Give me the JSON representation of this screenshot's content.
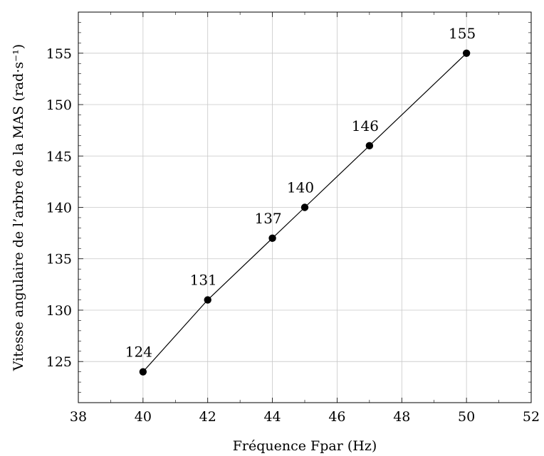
{
  "chart_data": {
    "type": "line",
    "title": "",
    "xlabel": "Fréquence Fpar (Hz)",
    "ylabel": "Vitesse angulaire de l’arbre de la MAS (rad·s⁻¹)",
    "xlim": [
      38,
      52
    ],
    "ylim": [
      121,
      159
    ],
    "x_ticks": [
      38,
      40,
      42,
      44,
      46,
      48,
      50,
      52
    ],
    "y_ticks": [
      125,
      130,
      135,
      140,
      145,
      150,
      155
    ],
    "x_minor_step": 1,
    "y_minor_step": 1,
    "grid": true,
    "legend": "none",
    "series": [
      {
        "x": [
          40,
          42,
          44,
          45,
          47,
          50
        ],
        "y": [
          124,
          131,
          137,
          140,
          146,
          155
        ],
        "labels": [
          "124",
          "131",
          "137",
          "140",
          "146",
          "155"
        ],
        "color": "#000000"
      }
    ]
  }
}
